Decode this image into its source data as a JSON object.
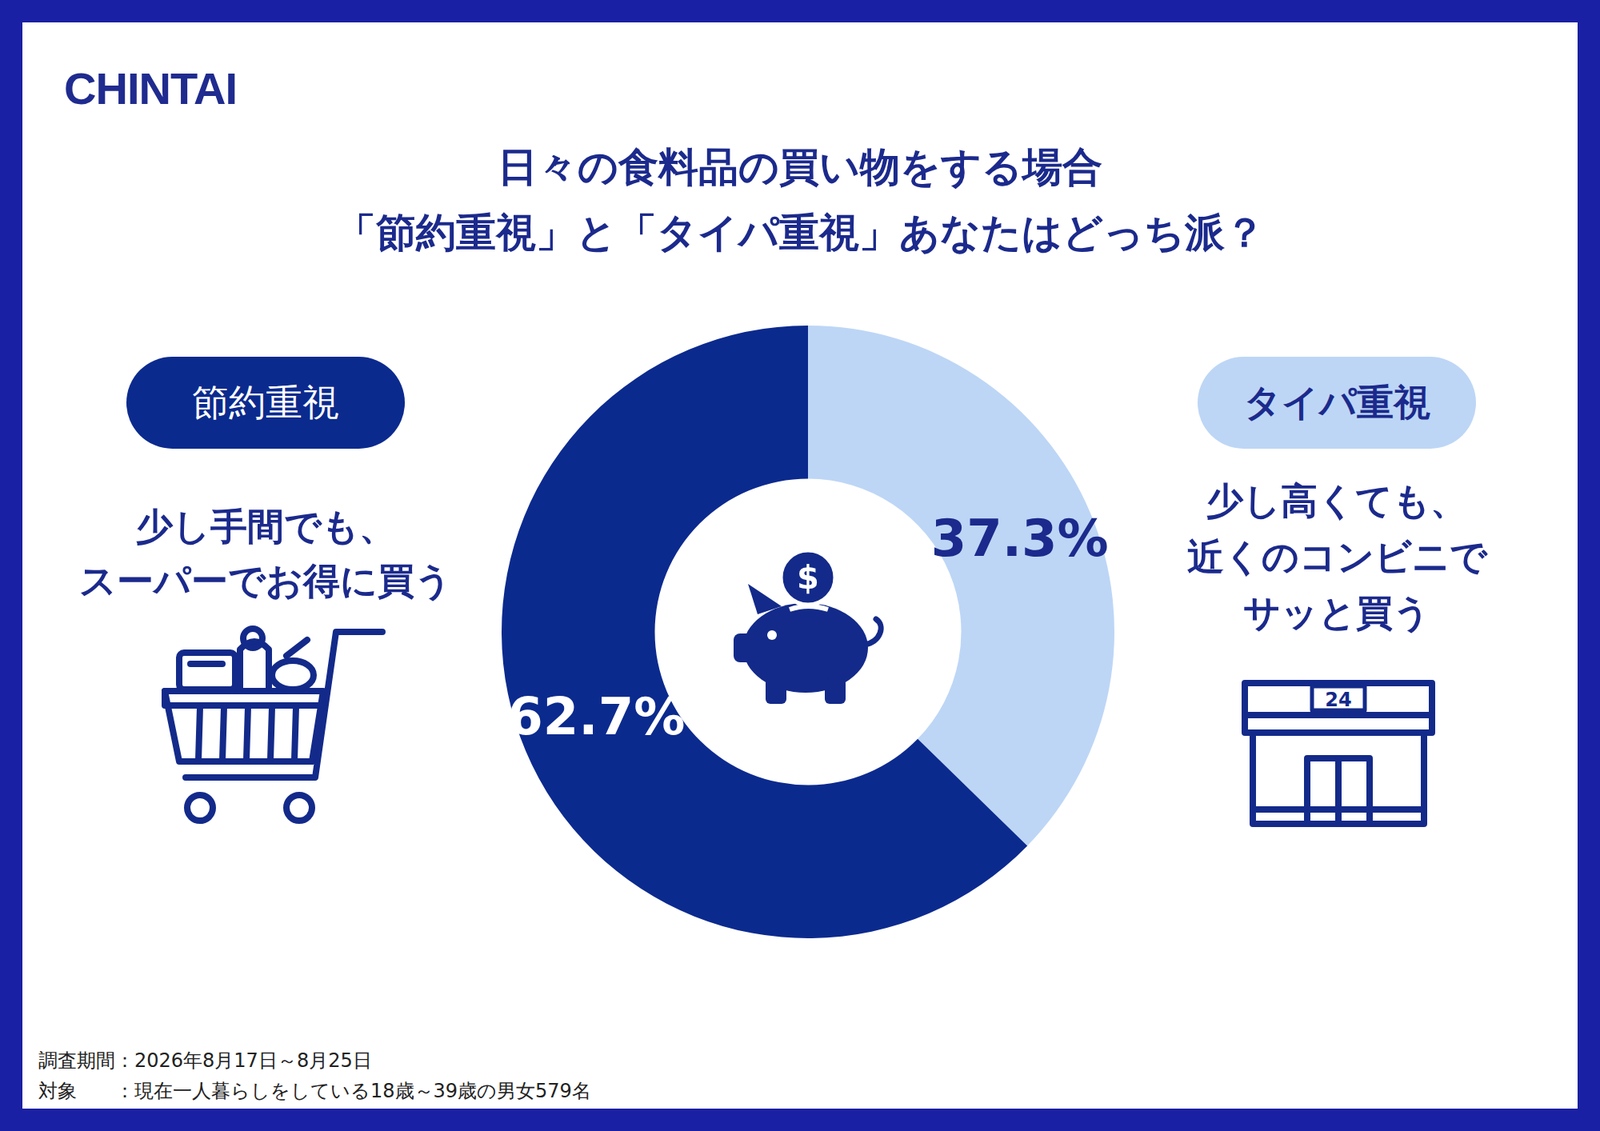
{
  "logo": "CHINTAI",
  "chart_data": {
    "type": "doughnut",
    "title": [
      "日々の食料品の買い物をする場合",
      "「節約重視」と「タイパ重視」あなたはどっち派？"
    ],
    "categories": [
      "タイパ重視",
      "節約重視"
    ],
    "values": [
      37.3,
      62.7
    ],
    "value_labels": [
      "37.3%",
      "62.7%"
    ],
    "colors": [
      "#bdd6f6",
      "#0b2a8e"
    ],
    "data_labels": true
  },
  "descriptions": [
    [
      "少し高くても、",
      "近くのコンビニで",
      "サッと買う"
    ],
    [
      "少し手間でも、",
      "スーパーでお得に買う"
    ]
  ],
  "icons": {
    "coin": "$",
    "store_sign": "24"
  },
  "footer": [
    "調査期間：2026年8月17日～8月25日",
    "対象　　：現在一人暮らしをしている18歳～39歳の男女579名"
  ]
}
